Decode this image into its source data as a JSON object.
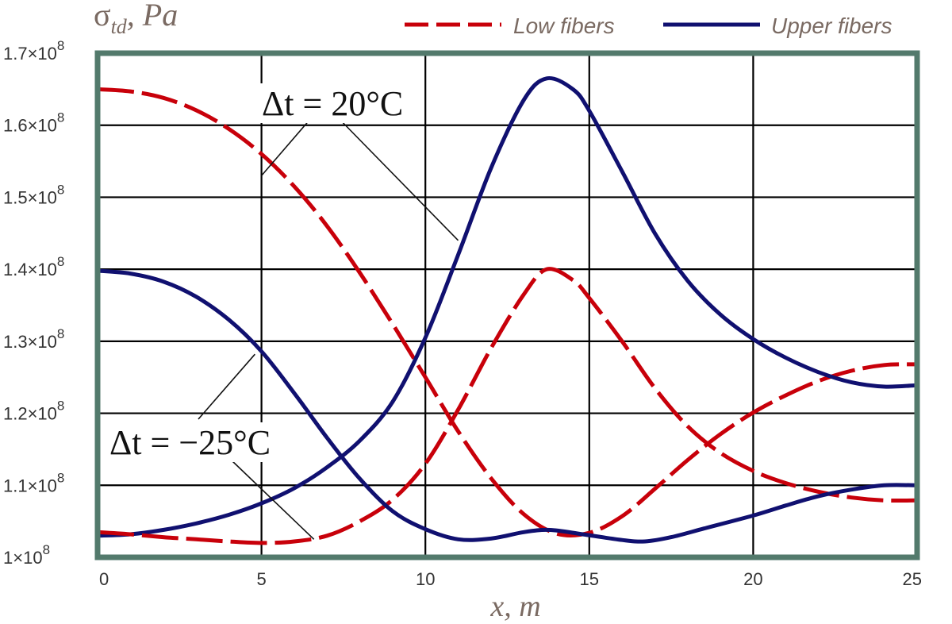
{
  "chart_data": {
    "type": "line",
    "ylabel": {
      "base": "σ",
      "sub": "td",
      "unit": ", Pa"
    },
    "xlabel": "x, m",
    "xlim": [
      0,
      25
    ],
    "ylim": [
      100000000,
      170000000
    ],
    "x_ticks": [
      0,
      5,
      10,
      15,
      20,
      25
    ],
    "x_tick_labels": [
      "0",
      "5",
      "10",
      "15",
      "20",
      "25"
    ],
    "y_ticks": [
      100000000,
      110000000,
      120000000,
      130000000,
      140000000,
      150000000,
      160000000,
      170000000
    ],
    "y_tick_labels": [
      {
        "mant": "1",
        "exp": "8"
      },
      {
        "mant": "1.1",
        "exp": "8"
      },
      {
        "mant": "1.2",
        "exp": "8"
      },
      {
        "mant": "1.3",
        "exp": "8"
      },
      {
        "mant": "1.4",
        "exp": "8"
      },
      {
        "mant": "1.5",
        "exp": "8"
      },
      {
        "mant": "1.6",
        "exp": "8"
      },
      {
        "mant": "1.7",
        "exp": "8"
      }
    ],
    "grid": true,
    "legend_position": "top",
    "series": [
      {
        "name": "Low fibers",
        "group": "Δt = 20°C",
        "color": "#c8000a",
        "dash": "dashed",
        "points": [
          [
            0,
            165
          ],
          [
            1,
            164.7
          ],
          [
            2,
            163.8
          ],
          [
            3,
            162.1
          ],
          [
            4,
            159.5
          ],
          [
            5,
            156
          ],
          [
            6,
            151.5
          ],
          [
            7,
            146
          ],
          [
            8,
            139.5
          ],
          [
            9,
            132.4
          ],
          [
            10,
            125
          ],
          [
            11,
            117.5
          ],
          [
            12,
            111
          ],
          [
            13,
            106
          ],
          [
            14,
            103.3
          ],
          [
            15,
            103.4
          ],
          [
            16,
            105.7
          ],
          [
            17,
            109.5
          ],
          [
            18,
            113.5
          ],
          [
            19,
            117.1
          ],
          [
            20,
            120.1
          ],
          [
            21,
            122.5
          ],
          [
            22,
            124.5
          ],
          [
            23,
            125.9
          ],
          [
            24,
            126.7
          ],
          [
            25,
            126.8
          ]
        ]
      },
      {
        "name": "Upper fibers",
        "group": "Δt = 20°C",
        "color": "#101070",
        "dash": "solid",
        "points": [
          [
            0,
            103
          ],
          [
            1,
            103.2
          ],
          [
            2,
            103.8
          ],
          [
            3,
            104.7
          ],
          [
            4,
            105.9
          ],
          [
            5,
            107.5
          ],
          [
            6,
            109.6
          ],
          [
            7,
            112.5
          ],
          [
            8,
            116.2
          ],
          [
            9,
            121.6
          ],
          [
            10,
            130.5
          ],
          [
            11,
            142
          ],
          [
            12,
            154
          ],
          [
            13,
            163.5
          ],
          [
            13.7,
            166.5
          ],
          [
            14.5,
            165
          ],
          [
            15,
            162
          ],
          [
            16,
            153.6
          ],
          [
            17,
            145
          ],
          [
            18,
            138.4
          ],
          [
            19,
            133.7
          ],
          [
            20,
            130.3
          ],
          [
            21,
            127.7
          ],
          [
            22,
            125.7
          ],
          [
            23,
            124.3
          ],
          [
            24,
            123.7
          ],
          [
            25,
            123.9
          ]
        ]
      },
      {
        "name": "Low fibers",
        "group": "Δt = −25°C",
        "color": "#c8000a",
        "dash": "dashed",
        "points": [
          [
            0,
            103.5
          ],
          [
            1,
            103.2
          ],
          [
            2,
            102.8
          ],
          [
            3,
            102.5
          ],
          [
            4,
            102.2
          ],
          [
            5,
            102
          ],
          [
            6,
            102.2
          ],
          [
            7,
            103
          ],
          [
            8,
            105
          ],
          [
            9,
            108
          ],
          [
            10,
            113
          ],
          [
            11,
            120.5
          ],
          [
            12,
            129
          ],
          [
            13,
            136.5
          ],
          [
            13.7,
            140
          ],
          [
            14.5,
            138.5
          ],
          [
            15,
            136
          ],
          [
            16,
            130
          ],
          [
            17,
            123.5
          ],
          [
            18,
            118.2
          ],
          [
            19,
            114.5
          ],
          [
            20,
            112
          ],
          [
            21,
            110.3
          ],
          [
            22,
            109.1
          ],
          [
            23,
            108.3
          ],
          [
            24,
            107.9
          ],
          [
            25,
            107.9
          ]
        ]
      },
      {
        "name": "Upper fibers",
        "group": "Δt = −25°C",
        "color": "#101070",
        "dash": "solid",
        "points": [
          [
            0,
            139.8
          ],
          [
            1,
            139.4
          ],
          [
            2,
            138.3
          ],
          [
            3,
            136.2
          ],
          [
            4,
            133
          ],
          [
            5,
            128.6
          ],
          [
            6,
            122.8
          ],
          [
            7,
            116.6
          ],
          [
            8,
            110.9
          ],
          [
            9,
            106.4
          ],
          [
            10,
            103.9
          ],
          [
            11,
            102.5
          ],
          [
            12,
            102.6
          ],
          [
            13,
            103.5
          ],
          [
            13.8,
            103.8
          ],
          [
            14.8,
            103.2
          ],
          [
            16,
            102.4
          ],
          [
            16.7,
            102.2
          ],
          [
            17.5,
            102.8
          ],
          [
            18.5,
            104
          ],
          [
            20,
            105.8
          ],
          [
            21,
            107.2
          ],
          [
            22,
            108.5
          ],
          [
            23,
            109.4
          ],
          [
            24,
            110
          ],
          [
            25,
            110
          ]
        ]
      }
    ],
    "y_unit_note": "values in units of 1e6 Pa",
    "annotations": [
      {
        "text": "Δt = 20°C",
        "targets": [
          [
            5,
            153
          ],
          [
            11,
            144
          ]
        ]
      },
      {
        "text": "Δt = −25°C",
        "targets": [
          [
            4.8,
            128.2
          ],
          [
            6.6,
            102.5
          ]
        ]
      }
    ],
    "colors": {
      "frame": "#537a6c",
      "grid": "#000000",
      "low": "#c8000a",
      "upper": "#101070",
      "label": "#7a6a62"
    }
  }
}
